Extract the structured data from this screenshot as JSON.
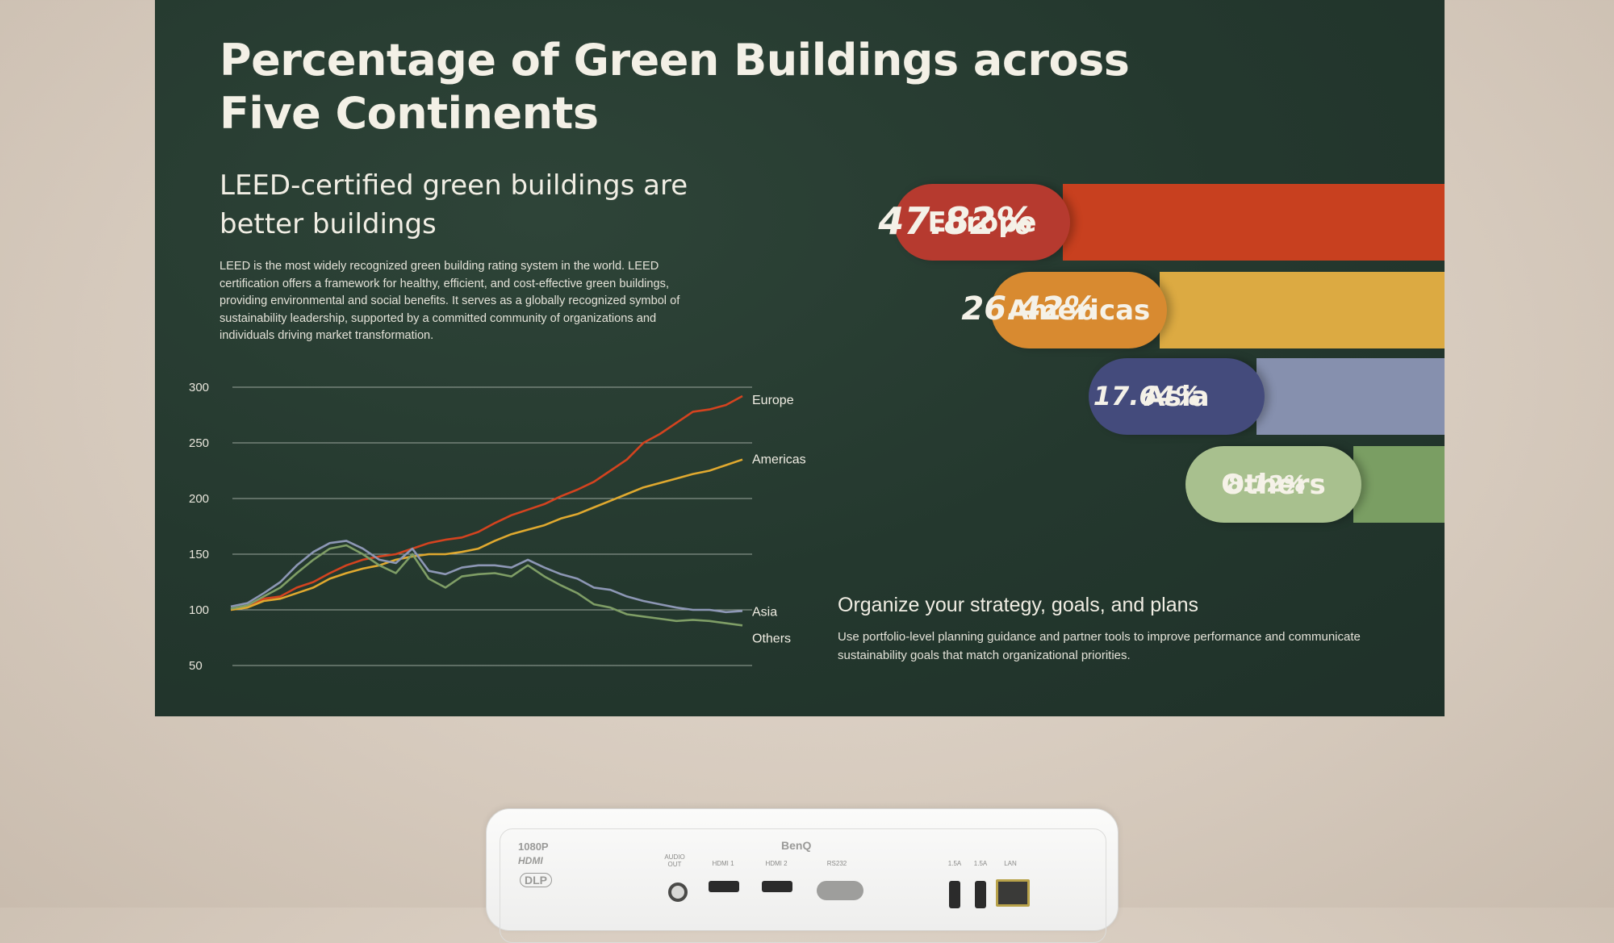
{
  "slide": {
    "title": "Percentage of Green Buildings across Five Continents",
    "subtitle": "LEED-certified green buildings are better buildings",
    "body": "LEED is the most widely recognized green building rating system in the world. LEED certification offers a framework for healthy, efficient, and cost-effective green buildings, providing environmental and social benefits. It serves as a globally recognized symbol of sustainability leadership, supported by a committed community of organizations and individuals driving market transformation.",
    "org_title": "Organize your strategy, goals, and plans",
    "org_body": "Use portfolio-level planning guidance and partner tools to improve performance and communicate sustainability goals that match organizational priorities."
  },
  "shares": [
    {
      "region": "Europe",
      "percent": "47.82%",
      "bar_color": "#c8401f",
      "pill_color": "#b63a2f"
    },
    {
      "region": "Americas",
      "percent": "26.42%",
      "bar_color": "#dcaa42",
      "pill_color": "#d88a30"
    },
    {
      "region": "Asia",
      "percent": "17.64%",
      "bar_color": "#8690ae",
      "pill_color": "#444b7c"
    },
    {
      "region": "Others",
      "percent": "8.12%",
      "bar_color": "#7a9e63",
      "pill_color": "#a8c08e"
    }
  ],
  "chart_data": {
    "type": "line",
    "ylim": [
      50,
      300
    ],
    "yticks": [
      300,
      250,
      200,
      150,
      100,
      50
    ],
    "grid": true,
    "series": [
      {
        "name": "Europe",
        "color": "#d4431f",
        "values": [
          100,
          103,
          110,
          112,
          120,
          125,
          133,
          140,
          145,
          148,
          150,
          155,
          160,
          163,
          165,
          170,
          178,
          185,
          190,
          195,
          202,
          208,
          215,
          225,
          235,
          250,
          258,
          268,
          278,
          280,
          284,
          292
        ]
      },
      {
        "name": "Americas",
        "color": "#e0a92f",
        "values": [
          100,
          102,
          108,
          110,
          115,
          120,
          128,
          133,
          137,
          140,
          145,
          148,
          150,
          150,
          152,
          155,
          162,
          168,
          172,
          176,
          182,
          186,
          192,
          198,
          204,
          210,
          214,
          218,
          222,
          225,
          230,
          235
        ]
      },
      {
        "name": "Asia",
        "color": "#8d97b5",
        "values": [
          103,
          106,
          115,
          125,
          140,
          152,
          160,
          162,
          155,
          145,
          142,
          155,
          135,
          132,
          138,
          140,
          140,
          138,
          145,
          138,
          132,
          128,
          120,
          118,
          112,
          108,
          105,
          102,
          100,
          100,
          98,
          99
        ]
      },
      {
        "name": "Others",
        "color": "#7f9e66",
        "values": [
          101,
          104,
          112,
          120,
          133,
          145,
          155,
          158,
          150,
          140,
          133,
          150,
          128,
          120,
          130,
          132,
          133,
          130,
          140,
          130,
          122,
          115,
          105,
          102,
          96,
          94,
          92,
          90,
          91,
          90,
          88,
          86
        ]
      }
    ]
  },
  "projector": {
    "brand": "BenQ",
    "resolution": "1080P",
    "ports": [
      "AUDIO OUT",
      "HDMI 1",
      "HDMI 2",
      "RS232",
      "1.5A",
      "1.5A",
      "LAN"
    ]
  }
}
